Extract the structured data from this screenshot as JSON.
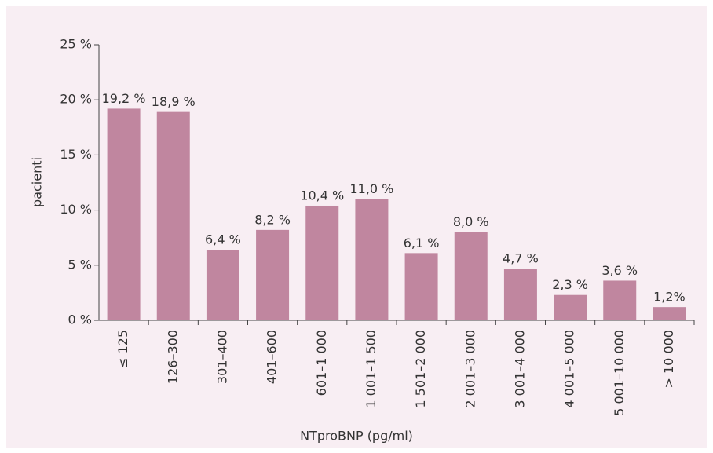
{
  "chart_data": {
    "type": "bar",
    "x_label": "NTproBNP (pg/ml)",
    "y_label": "pacienti",
    "categories": [
      "≤ 125",
      "126–300",
      "301–400",
      "401–600",
      "601–1 000",
      "1 001–1 500",
      "1 501–2 000",
      "2 001–3 000",
      "3 001–4 000",
      "4 001–5 000",
      "5 001–10 000",
      "> 10 000"
    ],
    "values": [
      19.2,
      18.9,
      6.4,
      8.2,
      10.4,
      11.0,
      6.1,
      8.0,
      4.7,
      2.3,
      3.6,
      1.2
    ],
    "value_labels": [
      "19,2 %",
      "18,9 %",
      "6,4 %",
      "8,2 %",
      "10,4 %",
      "11,0 %",
      "6,1 %",
      "8,0 %",
      "4,7 %",
      "2,3 %",
      "3,6 %",
      "1,2%"
    ],
    "color": "#c0869f",
    "ylim": [
      0,
      25
    ],
    "yticks": [
      {
        "value": 0,
        "label": "0 %"
      },
      {
        "value": 5,
        "label": "5 %"
      },
      {
        "value": 10,
        "label": "10 %"
      },
      {
        "value": 15,
        "label": "15 %"
      },
      {
        "value": 20,
        "label": "20 %"
      },
      {
        "value": 25,
        "label": "25 %"
      }
    ]
  }
}
